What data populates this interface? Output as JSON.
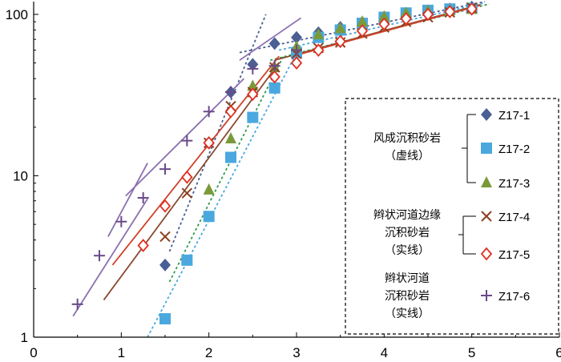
{
  "chart_data": {
    "type": "scatter",
    "x_axis": {
      "scale": "linear",
      "range": [
        0,
        6
      ],
      "ticks": [
        "0",
        "1",
        "2",
        "3",
        "4",
        "5",
        "6"
      ]
    },
    "y_axis": {
      "scale": "log",
      "range": [
        1,
        120
      ],
      "ticks": [
        "1",
        "10",
        "100"
      ]
    },
    "grid": false,
    "legend_position": "right",
    "legend_groups": [
      {
        "label_lines": [
          "风成沉积砂岩",
          "（虚线）"
        ],
        "series": [
          "Z17-1",
          "Z17-2",
          "Z17-3"
        ]
      },
      {
        "label_lines": [
          "辫状河道边缘",
          "沉积砂岩",
          "（实线）"
        ],
        "series": [
          "Z17-4",
          "Z17-5"
        ]
      },
      {
        "label_lines": [
          "辫状河道",
          "沉积砂岩",
          "（实线）"
        ],
        "series": [
          "Z17-6"
        ]
      }
    ],
    "series": [
      {
        "name": "Z17-1",
        "marker": "diamond",
        "color": "#4a5f93",
        "line_style": "dotted",
        "line_color": "#4a5f93",
        "points": [
          [
            1.5,
            2.8
          ],
          [
            2,
            16
          ],
          [
            2.25,
            33
          ],
          [
            2.5,
            49
          ],
          [
            2.75,
            66
          ],
          [
            3,
            72
          ],
          [
            3.25,
            77
          ],
          [
            3.5,
            83
          ],
          [
            3.75,
            89
          ],
          [
            4,
            95
          ],
          [
            4.25,
            100
          ],
          [
            4.5,
            104
          ],
          [
            4.75,
            108
          ],
          [
            5,
            111
          ]
        ],
        "fit_lines": [
          [
            [
              1.55,
              3.4
            ],
            [
              2.65,
              100
            ]
          ],
          [
            [
              2.35,
              58
            ],
            [
              5.15,
              120
            ]
          ]
        ]
      },
      {
        "name": "Z17-2",
        "marker": "square",
        "color": "#4aa8de",
        "line_style": "dotted",
        "line_color": "#4aa8de",
        "points": [
          [
            1.5,
            1.3
          ],
          [
            1.75,
            3
          ],
          [
            2,
            5.6
          ],
          [
            2.25,
            13
          ],
          [
            2.5,
            23
          ],
          [
            2.75,
            35
          ],
          [
            3,
            58
          ],
          [
            3.25,
            72
          ],
          [
            3.5,
            80
          ],
          [
            3.75,
            88
          ],
          [
            4,
            96
          ],
          [
            4.25,
            102
          ],
          [
            4.5,
            106
          ],
          [
            4.75,
            108
          ],
          [
            5,
            109
          ]
        ],
        "fit_lines": [
          [
            [
              1.3,
              1.0
            ],
            [
              3.05,
              65
            ]
          ],
          [
            [
              2.8,
              60
            ],
            [
              5.15,
              118
            ]
          ]
        ]
      },
      {
        "name": "Z17-3",
        "marker": "triangle",
        "color": "#7a9a3a",
        "line_style": "dotted",
        "line_color": "#2f9a4a",
        "points": [
          [
            2,
            8.2
          ],
          [
            2.25,
            17
          ],
          [
            2.5,
            36
          ],
          [
            2.75,
            47
          ],
          [
            3,
            63
          ],
          [
            3.25,
            75
          ],
          [
            3.5,
            82
          ],
          [
            3.75,
            90
          ],
          [
            4,
            97
          ],
          [
            4.25,
            102
          ],
          [
            4.5,
            105
          ],
          [
            4.75,
            106
          ],
          [
            5,
            108
          ]
        ],
        "fit_lines": [
          [
            [
              1.55,
              2.2
            ],
            [
              2.85,
              55
            ]
          ],
          [
            [
              2.7,
              52
            ],
            [
              5.2,
              116
            ]
          ]
        ]
      },
      {
        "name": "Z17-4",
        "marker": "x",
        "color": "#8a4020",
        "line_style": "solid",
        "line_color": "#8a4a30",
        "points": [
          [
            1.5,
            4.2
          ],
          [
            1.75,
            7.8
          ],
          [
            2,
            16
          ],
          [
            2.25,
            27
          ],
          [
            2.5,
            33
          ],
          [
            2.75,
            47
          ],
          [
            3,
            57
          ],
          [
            3.25,
            62
          ],
          [
            3.5,
            67
          ],
          [
            3.75,
            76
          ],
          [
            4,
            83
          ],
          [
            4.25,
            90
          ],
          [
            4.5,
            96
          ],
          [
            4.75,
            103
          ],
          [
            5,
            110
          ]
        ],
        "fit_lines": [
          [
            [
              0.8,
              1.7
            ],
            [
              2.8,
              50
            ]
          ],
          [
            [
              2.75,
              52
            ],
            [
              5.1,
              115
            ]
          ]
        ]
      },
      {
        "name": "Z17-5",
        "marker": "diamond-open",
        "color": "#e03020",
        "line_style": "solid",
        "line_color": "#d0402a",
        "points": [
          [
            1.25,
            3.7
          ],
          [
            1.5,
            6.5
          ],
          [
            1.75,
            9.8
          ],
          [
            2,
            16
          ],
          [
            2.25,
            25
          ],
          [
            2.5,
            32
          ],
          [
            2.75,
            41
          ],
          [
            3,
            50
          ],
          [
            3.25,
            60
          ],
          [
            3.5,
            68
          ],
          [
            3.75,
            79
          ],
          [
            4,
            87
          ],
          [
            4.25,
            94
          ],
          [
            4.5,
            100
          ],
          [
            4.75,
            104
          ],
          [
            5,
            108
          ]
        ],
        "fit_lines": [
          [
            [
              0.9,
              2.8
            ],
            [
              2.8,
              55
            ]
          ],
          [
            [
              2.95,
              55
            ],
            [
              5.1,
              114
            ]
          ]
        ]
      },
      {
        "name": "Z17-6",
        "marker": "plus",
        "color": "#6a4a8a",
        "line_style": "solid",
        "line_color": "#8a70b0",
        "points": [
          [
            0.5,
            1.6
          ],
          [
            0.75,
            3.2
          ],
          [
            1,
            5.2
          ],
          [
            1.25,
            7.3
          ],
          [
            1.5,
            11
          ],
          [
            1.75,
            16.5
          ],
          [
            2,
            25
          ],
          [
            2.25,
            33
          ],
          [
            2.5,
            46
          ],
          [
            2.75,
            48
          ],
          [
            3,
            60
          ]
        ],
        "fit_lines": [
          [
            [
              0.45,
              1.35
            ],
            [
              1.3,
              7.2
            ]
          ],
          [
            [
              0.85,
              4.2
            ],
            [
              1.3,
              12
            ]
          ],
          [
            [
              1.05,
              7.5
            ],
            [
              2.4,
              40
            ]
          ],
          [
            [
              2.35,
              52
            ],
            [
              3.05,
              95
            ]
          ]
        ]
      }
    ]
  }
}
